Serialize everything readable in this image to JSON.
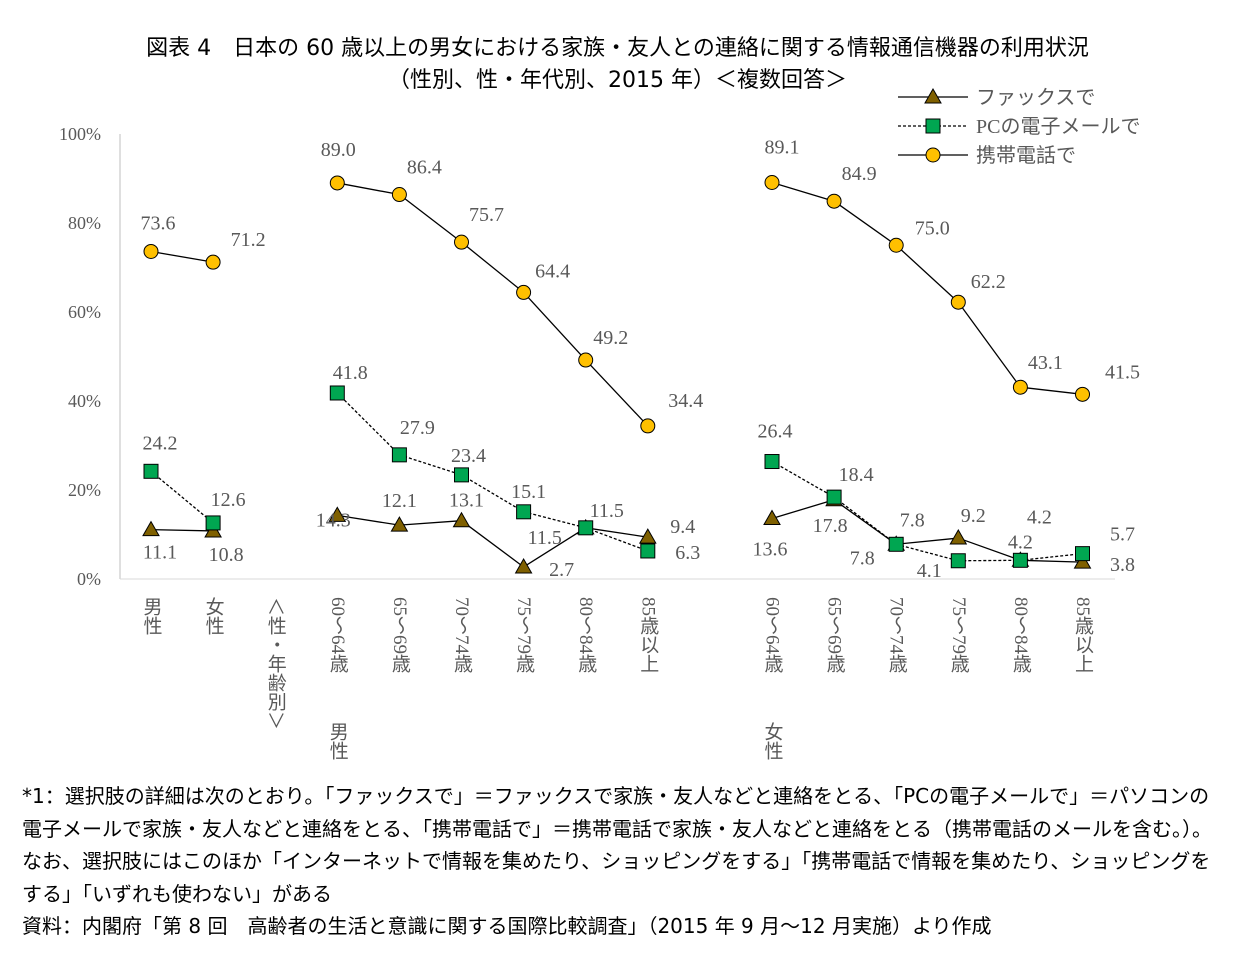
{
  "chart_data": {
    "type": "line",
    "title": "図表 4　日本の 60 歳以上の男女における家族・友人との連絡に関する情報通信機器の利用状況",
    "subtitle": "（性別、性・年代別、2015 年）＜複数回答＞",
    "categories": [
      "男性",
      "女性",
      "＜性・年齢別＞",
      "60～64歳",
      "65～69歳",
      "70～74歳",
      "75～79歳",
      "80～84歳",
      "85歳以上",
      "",
      "60～64歳",
      "65～69歳",
      "70～74歳",
      "75～79歳",
      "80～84歳",
      "85歳以上"
    ],
    "group_labels": [
      {
        "label": "男性",
        "category_index": 3
      },
      {
        "label": "女性",
        "category_index": 10
      }
    ],
    "yticks": [
      "0%",
      "20%",
      "40%",
      "60%",
      "80%",
      "100%"
    ],
    "ylim": [
      0,
      100
    ],
    "legend_position": "top-right",
    "grid": false,
    "series": [
      {
        "name": "ファックスで",
        "marker": "triangle",
        "line": "solid",
        "color": "#7f6000",
        "values": [
          11.1,
          10.8,
          null,
          14.3,
          12.1,
          13.1,
          2.7,
          11.5,
          9.4,
          null,
          13.6,
          17.8,
          7.8,
          9.2,
          4.2,
          3.8
        ]
      },
      {
        "name": "PCの電子メールで",
        "marker": "square",
        "line": "dashed",
        "color": "#00a651",
        "values": [
          24.2,
          12.6,
          null,
          41.8,
          27.9,
          23.4,
          15.1,
          11.5,
          6.3,
          null,
          26.4,
          18.4,
          7.8,
          4.1,
          4.2,
          5.7
        ]
      },
      {
        "name": "携帯電話で",
        "marker": "circle",
        "line": "solid",
        "color": "#ffc000",
        "values": [
          73.6,
          71.2,
          null,
          89.0,
          86.4,
          75.7,
          64.4,
          49.2,
          34.4,
          null,
          89.1,
          84.9,
          75.0,
          62.2,
          43.1,
          41.5
        ]
      }
    ]
  },
  "notes": [
    "*1：選択肢の詳細は次のとおり。「ファックスで」＝ファックスで家族・友人などと連絡をとる、「PCの電子メールで」＝パソコンの電子メールで家族・友人などと連絡をとる、「携帯電話で」＝携帯電話で家族・友人などと連絡をとる（携帯電話のメールを含む。）。なお、選択肢にはこのほか「インターネットで情報を集めたり、ショッピングをする」「携帯電話で情報を集めたり、ショッピングをする」「いずれも使わない」がある",
    "資料：内閣府「第 8 回　高齢者の生活と意識に関する国際比較調査」（2015 年 9 月～12 月実施）より作成"
  ]
}
